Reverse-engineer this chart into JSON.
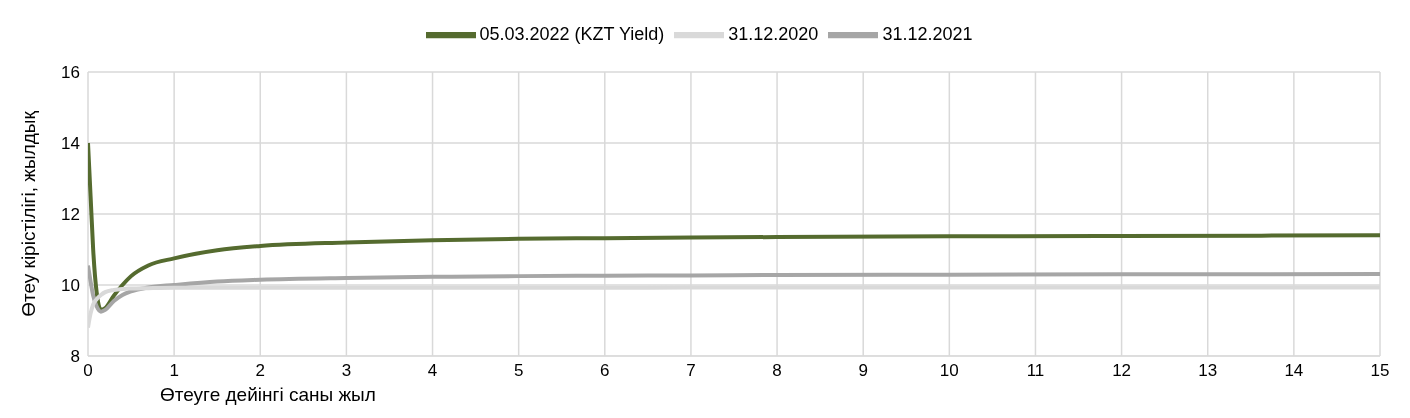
{
  "chart_data": {
    "type": "line",
    "xlabel": "Өтеуге дейінгі саны жыл",
    "ylabel": "Өтеу кірістілігі, жылдық",
    "x": [
      0,
      0.03,
      0.06,
      0.1,
      0.15,
      0.2,
      0.3,
      0.4,
      0.5,
      0.7,
      1,
      1.5,
      2,
      3,
      4,
      5,
      6,
      7,
      8,
      10,
      12,
      15
    ],
    "series": [
      {
        "name": "05.03.2022 (KZT Yield)",
        "color": "#556b2f",
        "values": [
          14,
          12.5,
          11,
          9.8,
          9.3,
          9.35,
          9.7,
          10,
          10.25,
          10.55,
          10.75,
          10.98,
          11.1,
          11.2,
          11.26,
          11.3,
          11.32,
          11.34,
          11.35,
          11.37,
          11.38,
          11.4
        ]
      },
      {
        "name": "31.12.2021",
        "color": "#a6a6a6",
        "values": [
          10.55,
          10.1,
          9.7,
          9.4,
          9.25,
          9.3,
          9.55,
          9.72,
          9.82,
          9.93,
          10,
          10.1,
          10.15,
          10.2,
          10.23,
          10.25,
          10.26,
          10.27,
          10.28,
          10.29,
          10.3,
          10.31
        ]
      },
      {
        "name": "31.12.2020",
        "color": "#d9d9d9",
        "values": [
          8.8,
          9.2,
          9.45,
          9.6,
          9.72,
          9.8,
          9.86,
          9.89,
          9.9,
          9.91,
          9.92,
          9.92,
          9.92,
          9.92,
          9.92,
          9.92,
          9.92,
          9.93,
          9.93,
          9.93,
          9.93,
          9.93
        ]
      }
    ],
    "xlim": [
      0,
      15
    ],
    "xticks": [
      0,
      1,
      2,
      3,
      4,
      5,
      6,
      7,
      8,
      9,
      10,
      11,
      12,
      13,
      14,
      15
    ],
    "ylim": [
      8,
      16
    ],
    "yticks": [
      8,
      10,
      12,
      14,
      16
    ],
    "grid": true,
    "legend": "top",
    "marker": "none",
    "line_style": "solid"
  }
}
